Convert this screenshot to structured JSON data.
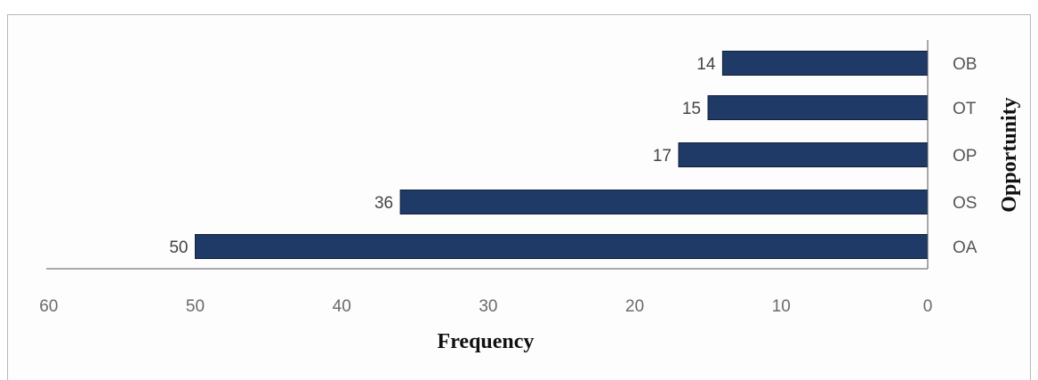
{
  "chart_data": {
    "type": "bar",
    "orientation": "horizontal",
    "x_axis_reversed": true,
    "categories": [
      "OB",
      "OT",
      "OP",
      "OS",
      "OA"
    ],
    "values": [
      14,
      15,
      17,
      36,
      50
    ],
    "xlabel": "Frequency",
    "ylabel": "Opportunity",
    "xlim": [
      0,
      60
    ],
    "xticks": [
      0,
      10,
      20,
      30,
      40,
      50,
      60
    ],
    "grid": false,
    "legend": "none",
    "bar_color": "#1f3a66",
    "bar_edge_color": "#0f1f3a",
    "data_labels": true
  }
}
